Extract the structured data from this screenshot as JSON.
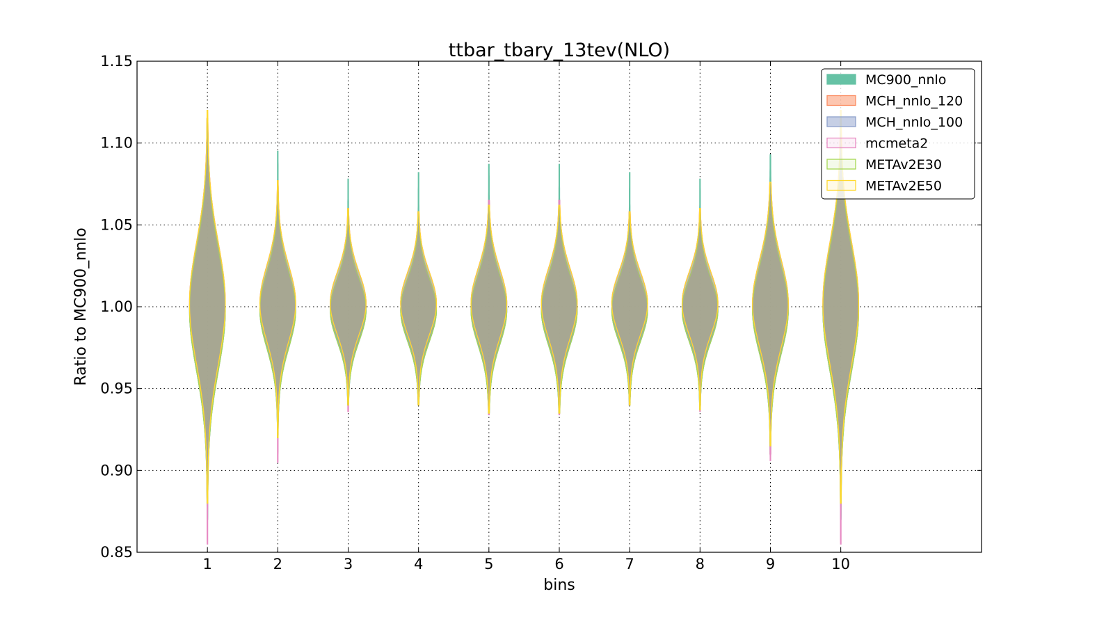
{
  "chart_data": {
    "type": "violin",
    "title": "ttbar_tbary_13tev(NLO)",
    "xlabel": "bins",
    "ylabel": "Ratio to MC900_nnlo",
    "categories": [
      "1",
      "2",
      "3",
      "4",
      "5",
      "6",
      "7",
      "8",
      "9",
      "10"
    ],
    "xlim": [
      0,
      12
    ],
    "ylim": [
      0.85,
      1.15
    ],
    "yticks": [
      "0.85",
      "0.90",
      "0.95",
      "1.00",
      "1.05",
      "1.10",
      "1.15"
    ],
    "grid": true,
    "legend_position": "top-right",
    "spread": [
      0.035,
      0.022,
      0.018,
      0.018,
      0.02,
      0.02,
      0.018,
      0.018,
      0.025,
      0.035
    ],
    "series": [
      {
        "name": "MC900_nnlo",
        "color": "#66c2a5",
        "min": [
          0.87,
          0.93,
          0.94,
          0.945,
          0.94,
          0.94,
          0.945,
          0.94,
          0.92,
          0.87
        ],
        "max": [
          1.11,
          1.095,
          1.078,
          1.082,
          1.087,
          1.087,
          1.082,
          1.078,
          1.093,
          1.11
        ]
      },
      {
        "name": "MCH_nnlo_120",
        "color": "#fc8d62",
        "min": [
          0.88,
          0.92,
          0.94,
          0.94,
          0.935,
          0.935,
          0.94,
          0.937,
          0.91,
          0.88
        ],
        "max": [
          1.115,
          1.077,
          1.06,
          1.058,
          1.065,
          1.065,
          1.058,
          1.06,
          1.076,
          1.115
        ]
      },
      {
        "name": "MCH_nnlo_100",
        "color": "#8da0cb",
        "min": [
          0.88,
          0.92,
          0.94,
          0.94,
          0.935,
          0.935,
          0.94,
          0.937,
          0.91,
          0.88
        ],
        "max": [
          1.115,
          1.077,
          1.06,
          1.058,
          1.065,
          1.065,
          1.058,
          1.06,
          1.076,
          1.115
        ]
      },
      {
        "name": "mcmeta2",
        "color": "#e78ac3",
        "min": [
          0.855,
          0.905,
          0.936,
          0.94,
          0.934,
          0.934,
          0.94,
          0.936,
          0.906,
          0.855
        ],
        "max": [
          1.115,
          1.077,
          1.06,
          1.058,
          1.065,
          1.065,
          1.058,
          1.06,
          1.076,
          1.115
        ]
      },
      {
        "name": "METAv2E30",
        "color": "#a6d854",
        "min": [
          0.88,
          0.92,
          0.94,
          0.94,
          0.935,
          0.935,
          0.94,
          0.937,
          0.915,
          0.88
        ],
        "max": [
          1.115,
          1.077,
          1.06,
          1.058,
          1.062,
          1.062,
          1.058,
          1.06,
          1.076,
          1.115
        ]
      },
      {
        "name": "METAv2E50",
        "color": "#ffd92f",
        "min": [
          0.88,
          0.92,
          0.94,
          0.94,
          0.935,
          0.935,
          0.94,
          0.937,
          0.915,
          0.88
        ],
        "max": [
          1.12,
          1.077,
          1.06,
          1.058,
          1.062,
          1.062,
          1.058,
          1.06,
          1.076,
          1.12
        ]
      }
    ]
  }
}
